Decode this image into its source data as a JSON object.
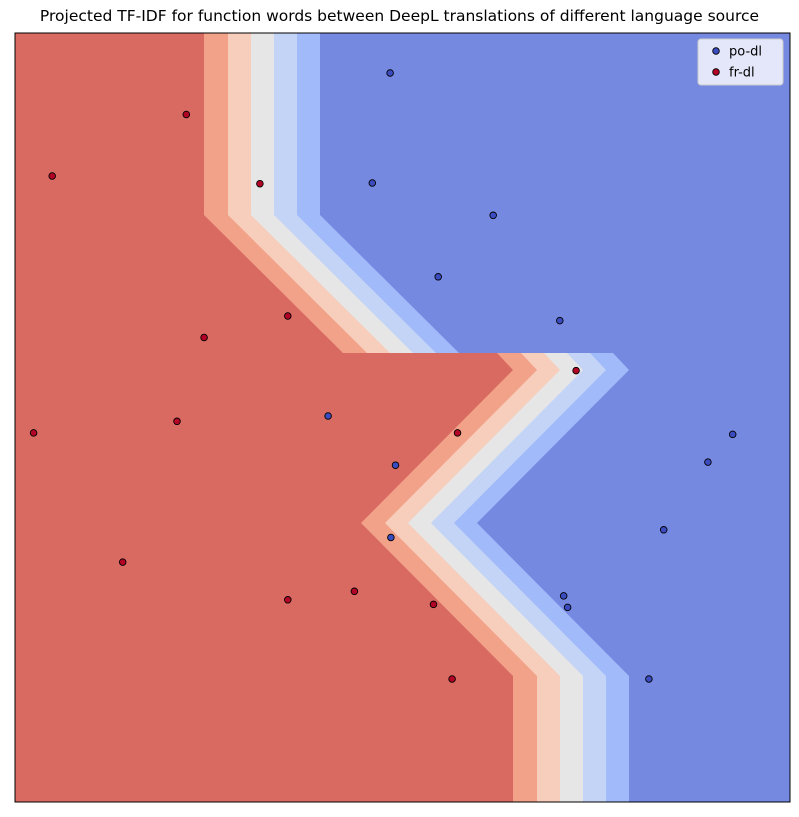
{
  "chart_data": {
    "type": "scatter",
    "title": "Projected TF-IDF for function words between DeepL translations of different language source",
    "xlabel": "",
    "ylabel": "",
    "axes_ticks": false,
    "grid": false,
    "legend": {
      "placement": "top-right",
      "entries": [
        "po-dl",
        "fr-dl"
      ]
    },
    "background": "decision-boundary contour (coolwarm)",
    "series": [
      {
        "name": "po-dl",
        "color": "#3b4cc0",
        "points": [
          [
            0.484,
            0.948
          ],
          [
            0.461,
            0.805
          ],
          [
            0.617,
            0.763
          ],
          [
            0.546,
            0.683
          ],
          [
            0.703,
            0.626
          ],
          [
            0.404,
            0.502
          ],
          [
            0.491,
            0.438
          ],
          [
            0.926,
            0.478
          ],
          [
            0.894,
            0.442
          ],
          [
            0.837,
            0.354
          ],
          [
            0.485,
            0.344
          ],
          [
            0.708,
            0.268
          ],
          [
            0.713,
            0.253
          ],
          [
            0.818,
            0.16
          ]
        ]
      },
      {
        "name": "fr-dl",
        "color": "#b40426",
        "points": [
          [
            0.221,
            0.894
          ],
          [
            0.048,
            0.814
          ],
          [
            0.316,
            0.804
          ],
          [
            0.352,
            0.632
          ],
          [
            0.244,
            0.604
          ],
          [
            0.724,
            0.561
          ],
          [
            0.024,
            0.48
          ],
          [
            0.209,
            0.495
          ],
          [
            0.571,
            0.48
          ],
          [
            0.139,
            0.312
          ],
          [
            0.438,
            0.274
          ],
          [
            0.352,
            0.263
          ],
          [
            0.54,
            0.257
          ],
          [
            0.564,
            0.16
          ]
        ]
      }
    ],
    "colors": {
      "red_region": "#d96a62",
      "red_band_1": "#f2a289",
      "red_band_2": "#f7cdbc",
      "neutral_band": "#e6e6e6",
      "blue_band_2": "#c3d4f6",
      "blue_band_1": "#a0bafa",
      "blue_region": "#7689e0"
    }
  }
}
